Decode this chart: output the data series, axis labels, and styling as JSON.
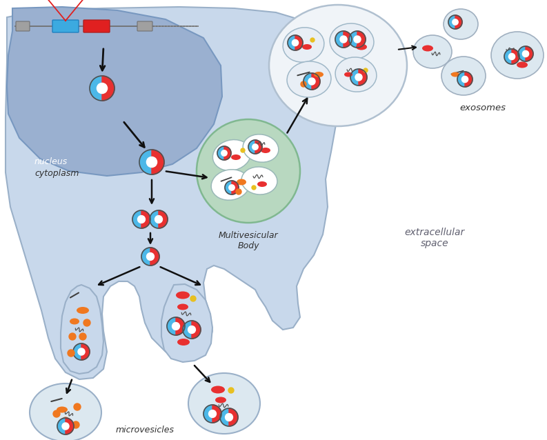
{
  "bg_color": "#ffffff",
  "cell_color": "#c8d8eb",
  "cell_border": "#9ab0c8",
  "nucleus_color": "#9ab0d0",
  "nucleus_border": "#7898c0",
  "mvb_color": "#b8d8c0",
  "mvb_border": "#80b890",
  "vesicle_bg": "#dce8f0",
  "vesicle_border": "#9ab0c8",
  "large_exo_bg": "#f0f4f8",
  "large_exo_border": "#b0c0d0",
  "circ_blue": "#4cb8e8",
  "circ_red": "#e83030",
  "circ_orange": "#f07820",
  "circ_yellow": "#e8c020",
  "line_color": "#505050",
  "arrow_color": "#101010",
  "gene_blue": "#3caae0",
  "gene_red": "#e02020",
  "gene_gray": "#909090",
  "text_color": "#303030",
  "labels": {
    "nucleus": "nucleus",
    "cytoplasm": "cytoplasm",
    "mvb": "Multivesicular\nBody",
    "exosomes": "exosomes",
    "microvesicles": "microvesicles",
    "extracellular": "extracellular\nspace"
  }
}
